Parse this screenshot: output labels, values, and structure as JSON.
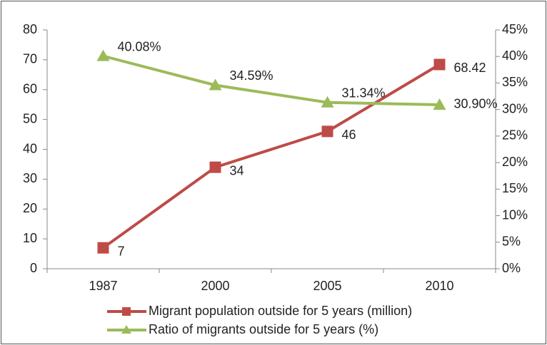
{
  "chart_data": {
    "type": "line",
    "categories": [
      "1987",
      "2000",
      "2005",
      "2010"
    ],
    "series": [
      {
        "name": "Migrant population outside for 5 years (million)",
        "color": "#be4b48",
        "marker": "square",
        "values": [
          7,
          34,
          46,
          68.42
        ]
      },
      {
        "name": "Ratio of migrants outside for 5 years (%)",
        "color": "#9bbb59",
        "marker": "triangle",
        "axis": "y2",
        "values": [
          40.08,
          34.59,
          31.34,
          30.9
        ],
        "value_labels": [
          "40.08%",
          "34.59%",
          "31.34%",
          "30.90%"
        ]
      }
    ],
    "ylim": [
      0,
      80
    ],
    "yticks": [
      0,
      10,
      20,
      30,
      40,
      50,
      60,
      70,
      80
    ],
    "y2lim": [
      0,
      45
    ],
    "y2ticks": [
      {
        "value": 0,
        "label": "0%"
      },
      {
        "value": 5,
        "label": "5%"
      },
      {
        "value": 10,
        "label": "10%"
      },
      {
        "value": 15,
        "label": "15%"
      },
      {
        "value": 20,
        "label": "20%"
      },
      {
        "value": 25,
        "label": "25%"
      },
      {
        "value": 30,
        "label": "30%"
      },
      {
        "value": 35,
        "label": "35%"
      },
      {
        "value": 40,
        "label": "40%"
      },
      {
        "value": 45,
        "label": "45%"
      }
    ],
    "grid": false,
    "legend": "bottom"
  }
}
